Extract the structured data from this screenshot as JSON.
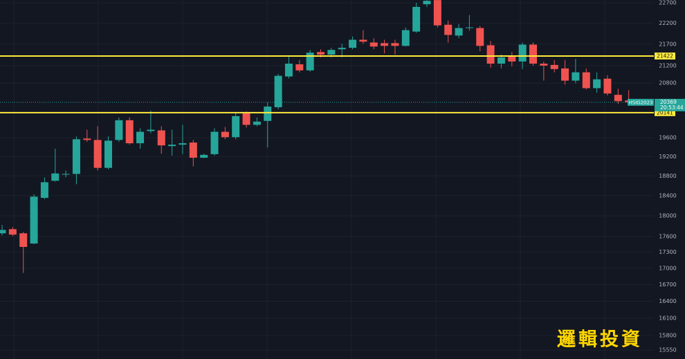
{
  "chart_data": {
    "type": "candlestick",
    "symbol": "HSIG2023",
    "time": "20:53:44",
    "watermark": "邏輯投資",
    "log_scale": true,
    "grid": true,
    "ylim": [
      15400,
      22770
    ],
    "yticks": [
      15550,
      15800,
      16100,
      16400,
      16700,
      17000,
      17300,
      17600,
      18000,
      18400,
      18800,
      19200,
      19600,
      20800,
      21200,
      21700,
      22200,
      22700
    ],
    "up_color": "#26a69a",
    "down_color": "#ef5350",
    "last_price": 20369,
    "horizontal_lines": [
      21422,
      20141
    ],
    "line_color": "#ffeb3b",
    "open": [
      17660,
      17740,
      17660,
      17465,
      18355,
      18700,
      18825,
      18840,
      19580,
      19550,
      18965,
      19550,
      19975,
      19480,
      19740,
      19755,
      19420,
      19450,
      19495,
      19175,
      19250,
      19725,
      19610,
      20125,
      19875,
      19960,
      20260,
      20950,
      21230,
      21090,
      21515,
      21455,
      21580,
      21615,
      21805,
      21740,
      21725,
      21725,
      21660,
      22000,
      22665,
      22768,
      22165,
      21905,
      22085,
      22085,
      21675,
      21245,
      21405,
      21295,
      21690,
      21245,
      21215,
      21135,
      20855,
      21045,
      20685,
      20900,
      20535,
      20410
    ],
    "high": [
      17820,
      17780,
      17685,
      18425,
      18770,
      19365,
      18910,
      19625,
      19770,
      19845,
      19625,
      20035,
      20035,
      19800,
      20185,
      19845,
      19770,
      19875,
      19550,
      19260,
      19800,
      19830,
      20140,
      20170,
      20035,
      20365,
      21010,
      21405,
      21325,
      21565,
      21580,
      21615,
      21710,
      21885,
      22035,
      21840,
      21805,
      21805,
      22100,
      22700,
      22768,
      22768,
      22265,
      22180,
      22400,
      22135,
      21775,
      21455,
      21515,
      21740,
      21740,
      21295,
      21325,
      21325,
      21355,
      21135,
      21045,
      20980,
      20670,
      20640
    ],
    "low": [
      17620,
      17610,
      16915,
      17450,
      18330,
      18685,
      18770,
      18630,
      19510,
      18910,
      18935,
      19510,
      19450,
      19365,
      19695,
      19260,
      19220,
      19250,
      18995,
      19165,
      19220,
      19565,
      19565,
      19815,
      19845,
      19390,
      20215,
      20905,
      21045,
      21060,
      21390,
      21390,
      21390,
      21580,
      21710,
      21580,
      21485,
      21455,
      21645,
      21970,
      22600,
      22100,
      21740,
      21840,
      22020,
      21535,
      21150,
      21135,
      21185,
      21120,
      21200,
      20855,
      21045,
      20765,
      20795,
      20655,
      20580,
      20520,
      20335,
      20335
    ],
    "close": [
      17725,
      17635,
      17400,
      18380,
      18670,
      18850,
      18840,
      19565,
      19550,
      18965,
      19535,
      19975,
      19480,
      19725,
      19770,
      19435,
      19450,
      19480,
      19175,
      19235,
      19725,
      19610,
      20065,
      19875,
      19945,
      20275,
      20965,
      21245,
      21090,
      21500,
      21455,
      21565,
      21615,
      21805,
      21760,
      21645,
      21660,
      21660,
      22035,
      22600,
      22750,
      22150,
      21920,
      22085,
      22100,
      21660,
      21245,
      21390,
      21295,
      21690,
      21245,
      21200,
      21120,
      20855,
      21045,
      20685,
      20885,
      20565,
      20395,
      20369
    ]
  }
}
